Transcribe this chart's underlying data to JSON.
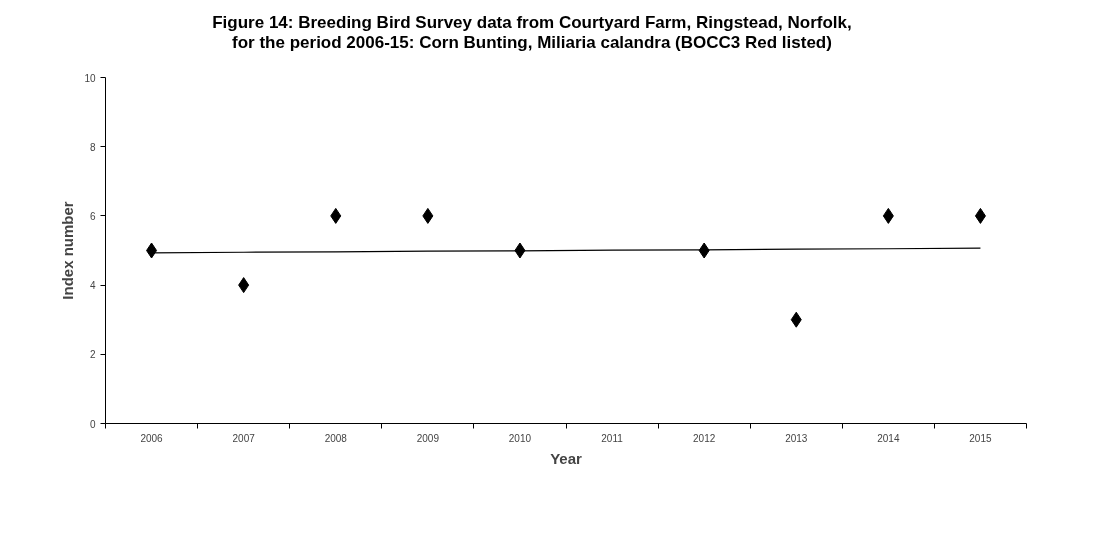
{
  "chart_data": {
    "type": "scatter",
    "title": "Figure 14: Breeding Bird Survey data from Courtyard Farm, Ringstead, Norfolk, for the period 2006-15: Corn Bunting, Miliaria calandra (BOCC3 Red listed)",
    "xlabel": "Year",
    "ylabel": "Index number",
    "categories": [
      "2006",
      "2007",
      "2008",
      "2009",
      "2010",
      "2011",
      "2012",
      "2013",
      "2014",
      "2015"
    ],
    "series": [
      {
        "color": "#000000",
        "marker": "diamond",
        "values": [
          5,
          4,
          6,
          6,
          5,
          null,
          5,
          3,
          6,
          6
        ]
      },
      {
        "type": "line",
        "color": "#000000",
        "marker": "none",
        "values": [
          4.93,
          4.95,
          4.96,
          4.98,
          4.99,
          5.01,
          5.02,
          5.04,
          5.05,
          5.07
        ]
      }
    ],
    "ylim": [
      0,
      10
    ],
    "yticks": [
      0,
      2,
      4,
      6,
      8,
      10
    ],
    "grid": false
  }
}
